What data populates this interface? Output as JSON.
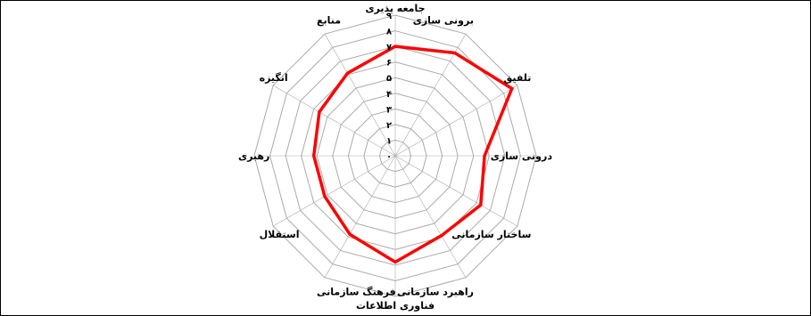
{
  "chart_data": {
    "type": "radar",
    "axes": [
      "جامعه پذیری",
      "برونی سازی",
      "تلفیق",
      "درونی سازی",
      "ساختار سازمانی",
      "راهبرد سازمانی",
      "فناوری اطلاعات",
      "فرهنگ سازمانی",
      "استقلال",
      "رهبری",
      "انگیزه",
      "منابع"
    ],
    "tick_labels": [
      "۰",
      "۱",
      "۲",
      "۳",
      "۴",
      "۵",
      "۶",
      "۷",
      "۸",
      "۹"
    ],
    "range": [
      0,
      9
    ],
    "series": [
      {
        "values": [
          7,
          7.6,
          8.6,
          5.7,
          6.3,
          5.9,
          6.8,
          5.8,
          5.2,
          5.2,
          5.6,
          6.1
        ],
        "color": "#ff0000"
      }
    ],
    "grid": true,
    "grid_color": "#aaaaaa"
  }
}
